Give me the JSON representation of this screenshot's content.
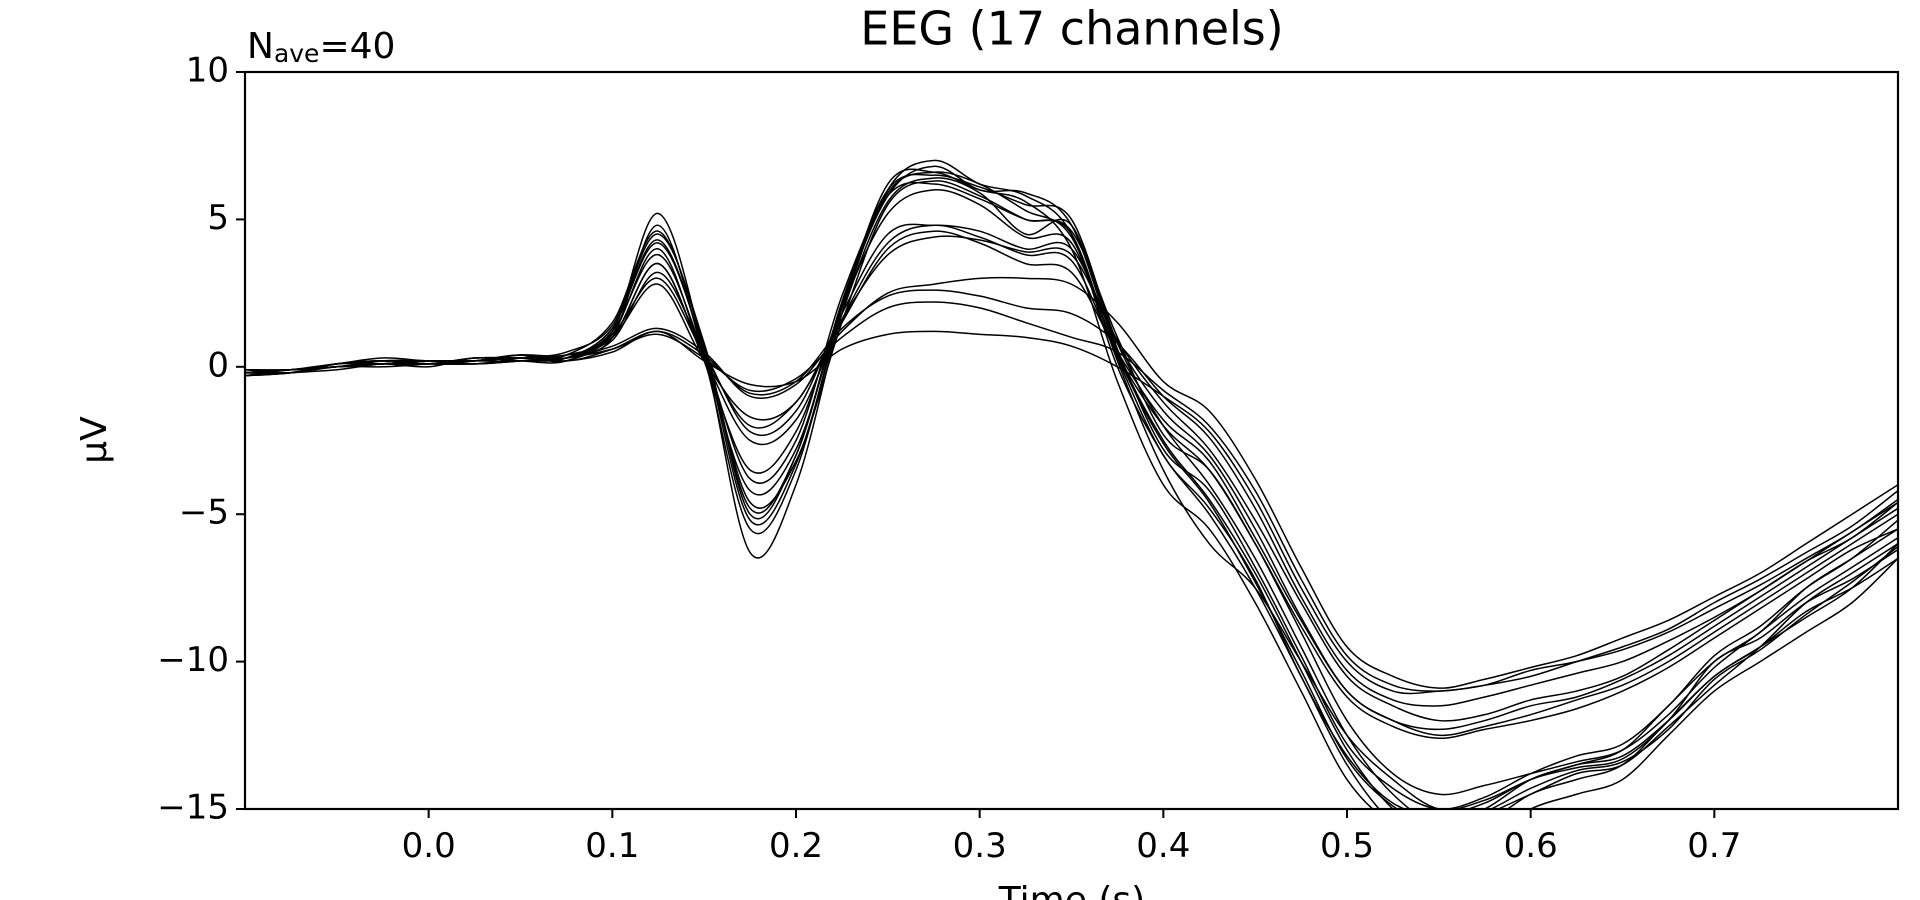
{
  "chart_data": {
    "type": "line",
    "title": "EEG (17 channels)",
    "annotation": [
      "N",
      "ave",
      "=40"
    ],
    "xlabel": "Time (s)",
    "ylabel": "µV",
    "color": "#000000",
    "xlim": [
      -0.1,
      0.8
    ],
    "ylim": [
      -15,
      10
    ],
    "xticks": [
      {
        "value": 0,
        "label": "0.0"
      },
      0.1,
      0.2,
      0.3,
      0.4,
      0.5,
      0.6,
      0.7
    ],
    "yticks": [
      {
        "value": -15,
        "label": "−15"
      },
      {
        "value": -10,
        "label": "−10"
      },
      {
        "value": -5,
        "label": "−5"
      },
      0,
      5,
      10
    ],
    "x": [
      -0.1,
      -0.075,
      -0.05,
      -0.025,
      0,
      0.025,
      0.05,
      0.075,
      0.1,
      0.125,
      0.15,
      0.175,
      0.2,
      0.225,
      0.25,
      0.275,
      0.3,
      0.325,
      0.35,
      0.375,
      0.4,
      0.425,
      0.45,
      0.475,
      0.5,
      0.525,
      0.55,
      0.575,
      0.6,
      0.625,
      0.65,
      0.675,
      0.7,
      0.725,
      0.75,
      0.775,
      0.8
    ],
    "series": [
      {
        "values": [
          -0.3,
          -0.2,
          -0.1,
          0.1,
          0.1,
          0.2,
          0.3,
          0.3,
          1.2,
          5.2,
          0.5,
          -6.3,
          -4,
          1.8,
          6,
          7,
          6.2,
          5.8,
          4.5,
          0,
          -3,
          -5,
          -7.5,
          -10.5,
          -13.5,
          -15.5,
          -16.5,
          -16,
          -15,
          -14.5,
          -14,
          -12.5,
          -11,
          -10,
          -9,
          -8,
          -6.5
        ]
      },
      {
        "values": [
          -0.2,
          -0.1,
          0,
          0.2,
          0.1,
          0.2,
          0.4,
          0.4,
          1,
          4.8,
          0.3,
          -5.5,
          -3.5,
          2,
          5.8,
          6.8,
          6,
          5.9,
          4.8,
          0.5,
          -2.5,
          -4.5,
          -7,
          -10,
          -13,
          -15,
          -16,
          -15.5,
          -14.5,
          -14,
          -13.5,
          -12,
          -10.5,
          -9.5,
          -8.5,
          -7.5,
          -6
        ]
      },
      {
        "values": [
          -0.1,
          -0.2,
          0.1,
          0.1,
          0.2,
          0.1,
          0.3,
          0.5,
          1.4,
          4.5,
          0.8,
          -5,
          -3,
          2.2,
          6,
          6.5,
          6.1,
          5.5,
          5,
          0.8,
          -2,
          -4,
          -6.5,
          -9.5,
          -12.5,
          -14.5,
          -15.5,
          -15,
          -14,
          -13.5,
          -13,
          -11.5,
          -10,
          -9,
          -7.5,
          -6.5,
          -5.5
        ]
      },
      {
        "values": [
          -0.3,
          -0.1,
          0,
          0.2,
          0.2,
          0.1,
          0.2,
          0.3,
          1.3,
          4.2,
          0.6,
          -4.6,
          -3.2,
          1.5,
          5.5,
          6.3,
          5.8,
          5,
          4.5,
          0.2,
          -3.5,
          -6,
          -7.5,
          -10,
          -12.5,
          -14,
          -15,
          -14.7,
          -14,
          -13.5,
          -13.2,
          -12,
          -10.5,
          -9.5,
          -8.3,
          -7.5,
          -6.5
        ]
      },
      {
        "values": [
          -0.2,
          -0.2,
          0,
          0.1,
          0,
          0.3,
          0.2,
          0.2,
          1.1,
          4,
          0.2,
          -4.2,
          -2.8,
          2,
          6.2,
          6.6,
          6,
          5.6,
          4,
          -0.5,
          -4,
          -5.5,
          -8,
          -11,
          -14,
          -15.5,
          -15.8,
          -15.2,
          -14.5,
          -13.8,
          -13.5,
          -12.2,
          -10.8,
          -9.5,
          -8,
          -7,
          -6
        ]
      },
      {
        "values": [
          -0.1,
          -0.1,
          0.1,
          0.3,
          0.2,
          0.2,
          0.4,
          0.2,
          1.2,
          3.8,
          0.4,
          -3.8,
          -2.5,
          2.4,
          5.8,
          6.2,
          5.7,
          5,
          4.6,
          1,
          -2.3,
          -3.5,
          -6,
          -9,
          -12,
          -13.8,
          -14.5,
          -14.2,
          -13.8,
          -13.4,
          -13,
          -11.8,
          -10.2,
          -9,
          -7.8,
          -6.8,
          -5.8
        ]
      },
      {
        "values": [
          -0.3,
          -0.2,
          0,
          0,
          0.1,
          0.2,
          0.3,
          0.4,
          1,
          3.5,
          0.2,
          -3.5,
          -2.2,
          2,
          5.2,
          6,
          5.5,
          4.4,
          4.2,
          0.3,
          -3,
          -4.8,
          -7.2,
          -10.5,
          -13.2,
          -14.8,
          -15.2,
          -14.8,
          -14,
          -13.6,
          -13.3,
          -12,
          -10,
          -9.2,
          -8,
          -7.2,
          -6.2
        ]
      },
      {
        "values": [
          -0.2,
          -0.1,
          0.1,
          0.2,
          0.1,
          0.3,
          0.3,
          0.3,
          1.3,
          4.3,
          0.5,
          -5.2,
          -3.3,
          1.8,
          5.6,
          6.4,
          5.9,
          4.5,
          4.8,
          0.6,
          -2.8,
          -4.2,
          -6.8,
          -9.8,
          -12.8,
          -14.3,
          -15,
          -14.6,
          -13.8,
          -13.2,
          -12.8,
          -11.5,
          -9.8,
          -8.8,
          -7.5,
          -6.5,
          -5.2
        ]
      },
      {
        "values": [
          -0.2,
          -0.1,
          0,
          0.1,
          0.2,
          0.2,
          0.2,
          0.4,
          1.5,
          4.6,
          0.7,
          -4.8,
          -3,
          2.1,
          5.9,
          6.6,
          6.2,
          5.3,
          4.4,
          0.4,
          -2.6,
          -4.6,
          -7.3,
          -10.3,
          -13.3,
          -14.9,
          -15.6,
          -15.1,
          -14.3,
          -13.7,
          -13.4,
          -12.3,
          -10.6,
          -9.6,
          -8.4,
          -7.3,
          -6.1
        ]
      },
      {
        "values": [
          -0.2,
          -0.1,
          0,
          0.1,
          0.1,
          0.2,
          0.3,
          0.3,
          0.9,
          3.2,
          0.5,
          -2.2,
          -1.5,
          1.8,
          4.5,
          4.8,
          4.6,
          4,
          4,
          0.8,
          -1.5,
          -3,
          -5.5,
          -8.5,
          -11,
          -12,
          -12.5,
          -12.2,
          -11.8,
          -11.3,
          -10.8,
          -10,
          -9,
          -8,
          -7,
          -6,
          -5
        ]
      },
      {
        "values": [
          -0.3,
          -0.2,
          0.1,
          0.2,
          0.1,
          0.1,
          0.2,
          0.4,
          1,
          3.5,
          0.3,
          -2.5,
          -1.8,
          1.6,
          4.2,
          4.8,
          4.4,
          3.8,
          3.6,
          0.4,
          -2,
          -3.5,
          -6,
          -8.8,
          -11.2,
          -12.2,
          -12.6,
          -12.3,
          -12,
          -11.6,
          -11,
          -10.2,
          -9.2,
          -8.2,
          -7.2,
          -6.2,
          -5.5
        ]
      },
      {
        "values": [
          -0.1,
          -0.1,
          0,
          0.2,
          0.2,
          0.2,
          0.4,
          0.3,
          1.1,
          3,
          0.4,
          -2,
          -1.2,
          1.5,
          4,
          4.6,
          4.2,
          3.5,
          3.2,
          0.5,
          -1.8,
          -3.2,
          -5.8,
          -8.6,
          -11,
          -12,
          -12.3,
          -12,
          -11.5,
          -11.2,
          -10.6,
          -9.8,
          -8.8,
          -7.8,
          -6.8,
          -5.8,
          -4.8
        ]
      },
      {
        "values": [
          -0.2,
          -0.2,
          0.1,
          0.1,
          0.1,
          0.3,
          0.3,
          0.3,
          1,
          2.8,
          0.2,
          -1.7,
          -1.2,
          1.6,
          3.8,
          4.4,
          4.3,
          3.9,
          3.8,
          0.9,
          -1.2,
          -2.8,
          -5.2,
          -8,
          -10.5,
          -11.5,
          -12,
          -11.8,
          -11.3,
          -11,
          -10.5,
          -9.6,
          -8.6,
          -7.6,
          -6.6,
          -5.8,
          -4.6
        ]
      },
      {
        "values": [
          -0.2,
          -0.1,
          0,
          0.1,
          0.1,
          0.2,
          0.3,
          0.2,
          0.5,
          1.2,
          0.2,
          -0.6,
          -0.5,
          0.6,
          1.1,
          1.2,
          1.1,
          1,
          0.7,
          0,
          -1,
          -2.2,
          -4.5,
          -7.5,
          -10,
          -11,
          -11,
          -10.8,
          -10.3,
          -10,
          -9.6,
          -9,
          -8.2,
          -7.4,
          -6.5,
          -5.6,
          -4.5
        ]
      },
      {
        "values": [
          -0.3,
          -0.2,
          0.1,
          0.2,
          0.1,
          0.1,
          0.2,
          0.3,
          0.6,
          1.1,
          0.3,
          -0.8,
          -0.4,
          1,
          2,
          2.2,
          2,
          1.5,
          1,
          0.5,
          -0.8,
          -2,
          -4.2,
          -7.2,
          -9.8,
          -10.8,
          -11,
          -10.8,
          -10.5,
          -10,
          -9.5,
          -8.9,
          -8,
          -7.2,
          -6.3,
          -5.4,
          -4.2
        ]
      },
      {
        "values": [
          -0.1,
          -0.1,
          0,
          0.1,
          0.2,
          0.2,
          0.3,
          0.3,
          0.7,
          1.3,
          0.5,
          -1,
          -0.6,
          1.2,
          2.5,
          2.8,
          3,
          3,
          2.8,
          1.5,
          -0.5,
          -1.5,
          -3.8,
          -6.8,
          -9.5,
          -10.5,
          -10.9,
          -10.6,
          -10.2,
          -9.8,
          -9.2,
          -8.6,
          -7.8,
          -7,
          -6,
          -5,
          -4
        ]
      },
      {
        "values": [
          -0.2,
          -0.2,
          0.1,
          0.2,
          0.1,
          0.2,
          0.4,
          0.2,
          0.6,
          1.2,
          0.4,
          -0.9,
          -0.5,
          1.3,
          2.4,
          2.6,
          2.4,
          2,
          1.8,
          0.8,
          -1,
          -2.4,
          -4.8,
          -7.8,
          -10.3,
          -11.3,
          -11.5,
          -11.2,
          -10.8,
          -10.4,
          -10,
          -9.3,
          -8.5,
          -7.6,
          -6.6,
          -5.6,
          -4.6
        ]
      }
    ]
  }
}
